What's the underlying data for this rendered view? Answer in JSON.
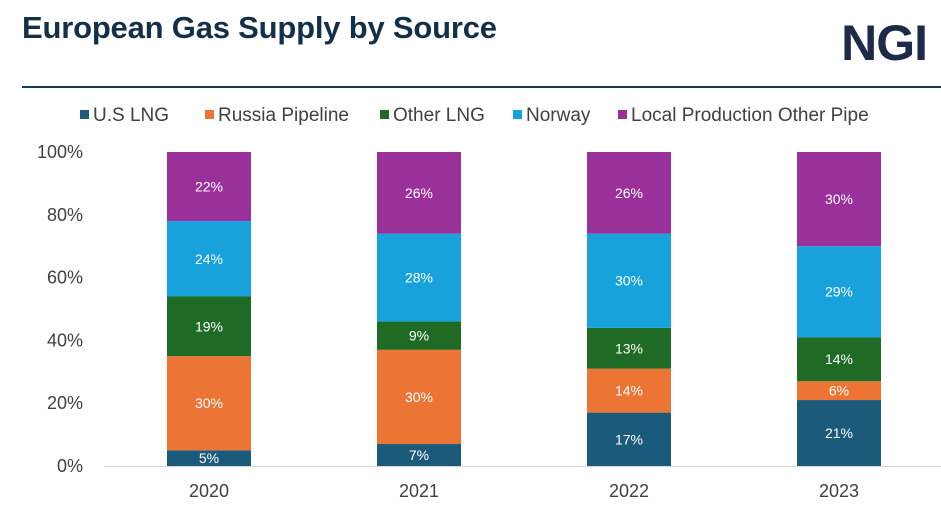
{
  "header": {
    "title": "European Gas Supply by Source",
    "logo_text": "NGI"
  },
  "colors": {
    "title": "#13304a",
    "logo": "#1d2a4a",
    "rule": "#1b3a4e"
  },
  "chart_data": {
    "type": "bar",
    "stacked": true,
    "title": "",
    "xlabel": "",
    "ylabel": "",
    "ylim": [
      0,
      100
    ],
    "yticks": [
      "0%",
      "20%",
      "40%",
      "60%",
      "80%",
      "100%"
    ],
    "categories": [
      "2020",
      "2021",
      "2022",
      "2023"
    ],
    "legend_position": "top",
    "grid": false,
    "series": [
      {
        "name": "U.S  LNG",
        "color": "#1b5a7a",
        "values": [
          5,
          7,
          17,
          21
        ],
        "labels": [
          "5%",
          "7%",
          "17%",
          "21%"
        ]
      },
      {
        "name": "Russia Pipeline",
        "color": "#ec7535",
        "values": [
          30,
          30,
          14,
          6
        ],
        "labels": [
          "30%",
          "30%",
          "14%",
          "6%"
        ]
      },
      {
        "name": "Other LNG",
        "color": "#1f6b26",
        "values": [
          19,
          9,
          13,
          14
        ],
        "labels": [
          "19%",
          "9%",
          "13%",
          "14%"
        ]
      },
      {
        "name": "Norway",
        "color": "#17a2dc",
        "values": [
          24,
          28,
          30,
          29
        ],
        "labels": [
          "24%",
          "28%",
          "30%",
          "29%"
        ]
      },
      {
        "name": "Local Production Other Pipe",
        "color": "#9a309a",
        "values": [
          22,
          26,
          26,
          30
        ],
        "labels": [
          "22%",
          "26%",
          "26%",
          "30%"
        ]
      }
    ]
  }
}
